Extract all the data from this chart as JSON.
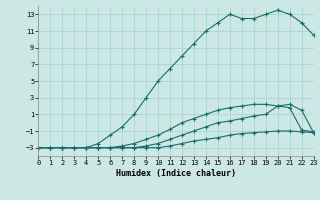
{
  "xlabel": "Humidex (Indice chaleur)",
  "background_color": "#cce8e4",
  "grid_color": "#aacfcb",
  "line_color": "#1a6b6b",
  "xlim": [
    0,
    23
  ],
  "ylim": [
    -4,
    14
  ],
  "xticks": [
    0,
    1,
    2,
    3,
    4,
    5,
    6,
    7,
    8,
    9,
    10,
    11,
    12,
    13,
    14,
    15,
    16,
    17,
    18,
    19,
    20,
    21,
    22,
    23
  ],
  "yticks": [
    -3,
    -1,
    1,
    3,
    5,
    7,
    9,
    11,
    13
  ],
  "curves": [
    {
      "x": [
        0,
        1,
        2,
        3,
        4,
        5,
        6,
        7,
        8,
        9,
        10,
        11,
        12,
        13,
        14,
        15,
        16,
        17,
        18,
        19,
        20,
        21,
        22,
        23
      ],
      "y": [
        -3,
        -3,
        -3,
        -3,
        -3,
        -3,
        -3,
        -3,
        -3,
        -3,
        -3,
        -2.8,
        -2.5,
        -2.2,
        -2,
        -1.8,
        -1.5,
        -1.3,
        -1.2,
        -1.1,
        -1,
        -1,
        -1.1,
        -1.2
      ]
    },
    {
      "x": [
        0,
        1,
        2,
        3,
        4,
        5,
        6,
        7,
        8,
        9,
        10,
        11,
        12,
        13,
        14,
        15,
        16,
        17,
        18,
        19,
        20,
        21,
        22,
        23
      ],
      "y": [
        -3,
        -3,
        -3,
        -3,
        -3,
        -3,
        -3,
        -3,
        -3,
        -2.8,
        -2.5,
        -2,
        -1.5,
        -1,
        -0.5,
        0,
        0.2,
        0.5,
        0.8,
        1.0,
        2.0,
        2.2,
        1.5,
        -1.2
      ]
    },
    {
      "x": [
        0,
        1,
        2,
        3,
        4,
        5,
        6,
        7,
        8,
        9,
        10,
        11,
        12,
        13,
        14,
        15,
        16,
        17,
        18,
        19,
        20,
        21,
        22,
        23
      ],
      "y": [
        -3,
        -3,
        -3,
        -3,
        -3,
        -3,
        -3,
        -2.8,
        -2.5,
        -2,
        -1.5,
        -0.8,
        0.0,
        0.5,
        1.0,
        1.5,
        1.8,
        2.0,
        2.2,
        2.2,
        2.0,
        1.8,
        -0.9,
        -1.1
      ]
    },
    {
      "x": [
        0,
        1,
        2,
        3,
        4,
        5,
        6,
        7,
        8,
        9,
        10,
        11,
        12,
        13,
        14,
        15,
        16,
        17,
        18,
        19,
        20,
        21,
        22,
        23
      ],
      "y": [
        -3,
        -3,
        -3,
        -3,
        -3,
        -2.5,
        -1.5,
        -0.5,
        1,
        3,
        5,
        6.5,
        8,
        9.5,
        11,
        12,
        13,
        12.5,
        12.5,
        13,
        13.5,
        13,
        12,
        10.5
      ]
    }
  ]
}
